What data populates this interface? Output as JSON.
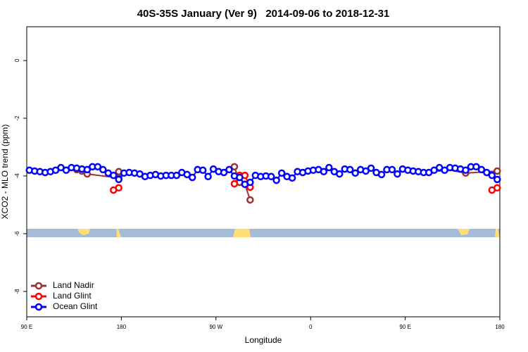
{
  "chart_data": {
    "type": "line",
    "title": "40S-35S January (Ver 9)   2014-09-06 to 2018-12-31",
    "x_label": "Longitude",
    "y_label": "XCO2 - MLO trend (ppm)",
    "xlim": [
      90,
      540
    ],
    "ylim": [
      -8.88,
      1.17
    ],
    "xticks": [
      {
        "value": 90,
        "label": "90 E"
      },
      180,
      {
        "value": 270,
        "label": "90 W"
      },
      {
        "value": 360,
        "label": "0"
      },
      {
        "value": 450,
        "label": "90 E"
      },
      {
        "value": 540,
        "label": "180"
      }
    ],
    "yticks": [
      0,
      -2,
      -4,
      -6,
      -8
    ],
    "legend": "lower left",
    "series": [
      {
        "name": "Land Nadir",
        "color": "#993333",
        "x": [
          137.5,
          142.5,
          147.5,
          177.5,
          177.5,
          230,
          287.5,
          292.5,
          297.5,
          302.5,
          400,
          482.5,
          507.5,
          537.5
        ],
        "values": [
          -3.78,
          -3.83,
          -3.93,
          -4.07,
          -3.85,
          null,
          -3.68,
          -4.22,
          -4.29,
          -4.83,
          null,
          -3.73,
          -3.9,
          -3.83
        ]
      },
      {
        "name": "Land Glint",
        "color": "#ff0000",
        "x": [
          172.5,
          177.5,
          230,
          287.5,
          292.5,
          297.5,
          302.5,
          400,
          532.5,
          537.5
        ],
        "values": [
          -4.49,
          -4.41,
          null,
          -4.27,
          -3.98,
          -3.98,
          -4.39,
          null,
          -4.49,
          -4.41
        ]
      },
      {
        "name": "Ocean Glint",
        "color": "#0000ff",
        "x": [
          92.5,
          97.5,
          102.5,
          107.5,
          112.5,
          117.5,
          122.5,
          127.5,
          132.5,
          137.5,
          142.5,
          147.5,
          152.5,
          157.5,
          162.5,
          167.5,
          172.5,
          177.5,
          182.5,
          187.5,
          192.5,
          197.5,
          202.5,
          207.5,
          212.5,
          217.5,
          222.5,
          227.5,
          232.5,
          237.5,
          242.5,
          247.5,
          252.5,
          257.5,
          262.5,
          267.5,
          272.5,
          277.5,
          282.5,
          287.5,
          292.5,
          297.5,
          302.5,
          307.5,
          312.5,
          317.5,
          322.5,
          327.5,
          332.5,
          337.5,
          342.5,
          347.5,
          352.5,
          357.5,
          362.5,
          367.5,
          372.5,
          377.5,
          382.5,
          387.5,
          392.5,
          397.5,
          402.5,
          407.5,
          412.5,
          417.5,
          422.5,
          427.5,
          432.5,
          437.5,
          442.5,
          447.5,
          452.5,
          457.5,
          462.5,
          467.5,
          472.5,
          477.5,
          482.5,
          487.5,
          492.5,
          497.5,
          502.5,
          507.5,
          512.5,
          517.5,
          522.5,
          527.5,
          532.5,
          537.5
        ],
        "values": [
          -3.8,
          -3.83,
          -3.85,
          -3.88,
          -3.85,
          -3.8,
          -3.71,
          -3.8,
          -3.71,
          -3.73,
          -3.76,
          -3.78,
          -3.68,
          -3.68,
          -3.78,
          -3.9,
          -3.98,
          -4.12,
          -3.9,
          -3.88,
          -3.9,
          -3.93,
          -4.02,
          -3.98,
          -3.95,
          -4.0,
          -3.98,
          -3.98,
          -3.98,
          -3.88,
          -3.95,
          -4.05,
          -3.78,
          -3.8,
          -4.02,
          -3.76,
          -3.85,
          -3.88,
          -3.78,
          -4.0,
          -4.05,
          -4.29,
          -4.22,
          -3.98,
          -4.02,
          -4.0,
          -4.02,
          -4.15,
          -3.9,
          -4.02,
          -4.07,
          -3.85,
          -3.88,
          -3.83,
          -3.8,
          -3.78,
          -3.85,
          -3.71,
          -3.85,
          -3.93,
          -3.76,
          -3.78,
          -3.9,
          -3.78,
          -3.83,
          -3.73,
          -3.88,
          -3.95,
          -3.78,
          -3.78,
          -3.93,
          -3.76,
          -3.8,
          -3.83,
          -3.85,
          -3.88,
          -3.88,
          -3.8,
          -3.71,
          -3.8,
          -3.71,
          -3.73,
          -3.76,
          -3.8,
          -3.68,
          -3.68,
          -3.78,
          -3.88,
          -3.98,
          -4.12
        ]
      }
    ]
  }
}
